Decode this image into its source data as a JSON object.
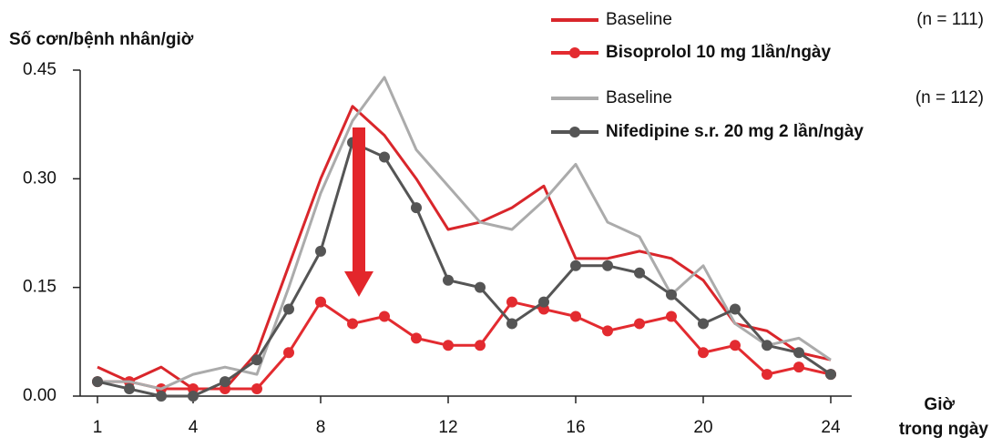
{
  "chart_data": {
    "type": "line",
    "ylabel": "Số cơn/bệnh nhân/giờ",
    "xlabel": [
      "Giờ",
      "trong ngày"
    ],
    "x": [
      1,
      2,
      3,
      4,
      5,
      6,
      7,
      8,
      9,
      10,
      11,
      12,
      13,
      14,
      15,
      16,
      17,
      18,
      19,
      20,
      21,
      22,
      23,
      24
    ],
    "xlim": [
      1,
      24
    ],
    "xticks": [
      1,
      4,
      8,
      12,
      16,
      20,
      24
    ],
    "ylim": [
      0,
      0.45
    ],
    "yticks": [
      {
        "value": 0,
        "label": "0.00"
      },
      {
        "value": 0.15,
        "label": "0.15"
      },
      {
        "value": 0.3,
        "label": "0.30"
      },
      {
        "value": 0.45,
        "label": "0.45"
      }
    ],
    "series": [
      {
        "name": "Baseline",
        "n": "(n = 111)",
        "color": "#d9262b",
        "marker": false,
        "values": [
          0.04,
          0.02,
          0.04,
          0.01,
          0.01,
          0.06,
          0.18,
          0.3,
          0.4,
          0.36,
          0.3,
          0.23,
          0.24,
          0.26,
          0.29,
          0.19,
          0.19,
          0.2,
          0.19,
          0.16,
          0.1,
          0.09,
          0.06,
          0.05
        ]
      },
      {
        "name": "Bisoprolol 10 mg 1lần/ngày",
        "color": "#e32b30",
        "marker": true,
        "values": [
          0.02,
          0.02,
          0.01,
          0.01,
          0.01,
          0.01,
          0.06,
          0.13,
          0.1,
          0.11,
          0.08,
          0.07,
          0.07,
          0.13,
          0.12,
          0.11,
          0.09,
          0.1,
          0.11,
          0.06,
          0.07,
          0.03,
          0.04,
          0.03
        ]
      },
      {
        "name": "Baseline",
        "n": "(n = 112)",
        "color": "#ababab",
        "marker": false,
        "values": [
          0.02,
          0.02,
          0.01,
          0.03,
          0.04,
          0.03,
          0.15,
          0.28,
          0.38,
          0.44,
          0.34,
          0.29,
          0.24,
          0.23,
          0.27,
          0.32,
          0.24,
          0.22,
          0.14,
          0.18,
          0.1,
          0.07,
          0.08,
          0.05
        ]
      },
      {
        "name": "Nifedipine s.r. 20 mg 2 lần/ngày",
        "color": "#555555",
        "marker": true,
        "values": [
          0.02,
          0.01,
          0.0,
          0.0,
          0.02,
          0.05,
          0.12,
          0.2,
          0.35,
          0.33,
          0.26,
          0.16,
          0.15,
          0.1,
          0.13,
          0.18,
          0.18,
          0.17,
          0.14,
          0.1,
          0.12,
          0.07,
          0.06,
          0.03
        ]
      }
    ]
  }
}
